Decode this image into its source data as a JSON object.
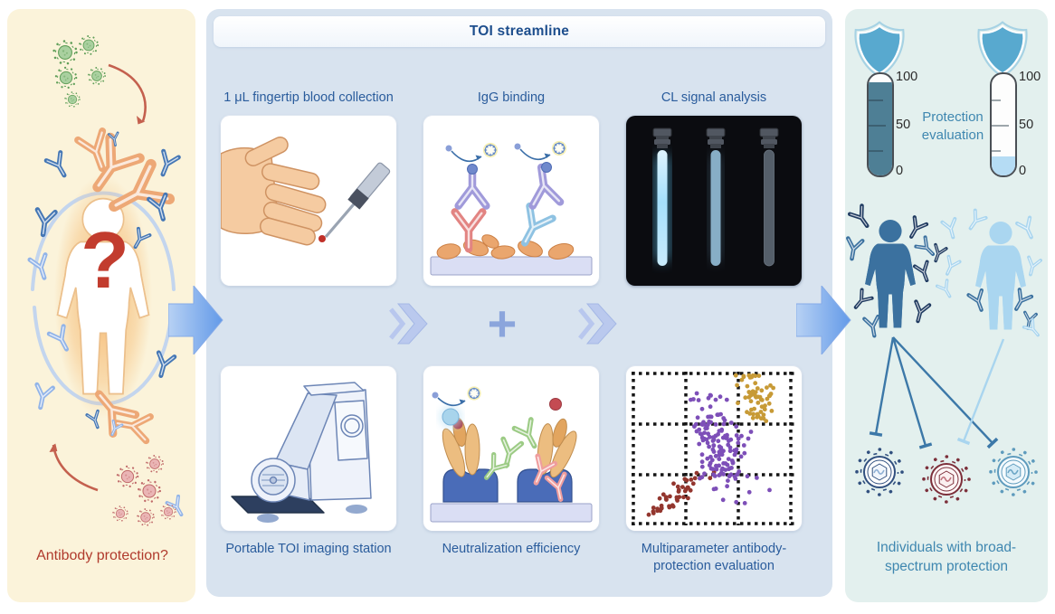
{
  "colors": {
    "left_panel_bg": "#fbf3da",
    "mid_panel_bg": "#d8e3ef",
    "right_panel_bg": "#e3f0ee",
    "label_blue": "#2a5c9c",
    "title_blue": "#1d4e8d",
    "caption_red": "#b03a2c",
    "caption_steel": "#3f87b0",
    "arrow_blue": "#639ae8",
    "chevron_blue": "#b8c7ee",
    "green_virus": "#5f9e58",
    "pink_virus": "#c06a6a",
    "dark_person": "#3b719f",
    "light_person": "#aad6f0",
    "navy_antibody": "#1f3a60",
    "orange_antibody": "#eda876",
    "shield": "#58a9cf"
  },
  "left_panel": {
    "question_mark": "?",
    "caption": "Antibody protection?"
  },
  "middle_panel": {
    "title": "TOI streamline",
    "plus": "+",
    "steps": [
      {
        "label": "1 μL fingertip blood collection"
      },
      {
        "label": "IgG binding"
      },
      {
        "label": "CL signal analysis"
      },
      {
        "label": "Portable TOI imaging station"
      },
      {
        "label": "Neutralization efficiency"
      },
      {
        "label": "Multiparameter antibody-protection evaluation"
      }
    ]
  },
  "chart_data": {
    "type": "scatter",
    "title": "Multiparameter antibody-protection evaluation",
    "grid": "dashed",
    "legend": "none",
    "series": [
      {
        "name": "low-protection cluster",
        "color": "#93362e",
        "n": 46,
        "center": [
          0.27,
          0.16
        ],
        "spread": [
          0.12,
          0.03
        ],
        "angle": 38
      },
      {
        "name": "mid-protection cluster",
        "color": "#7d4fb8",
        "n": 150,
        "center": [
          0.54,
          0.5
        ],
        "spread": [
          0.075,
          0.16
        ],
        "angle": 18
      },
      {
        "name": "high-protection cluster",
        "color": "#c79a36",
        "n": 62,
        "center": [
          0.77,
          0.8
        ],
        "spread": [
          0.055,
          0.085
        ],
        "angle": 15
      }
    ]
  },
  "right_panel": {
    "protection_label": "Protection evaluation",
    "caption": "Individuals with broad-spectrum protection",
    "gauges": [
      {
        "name": "high-protection-gauge",
        "fill_percent": 92,
        "color": "#4e7f95",
        "ticks": [
          "100",
          "50",
          "0"
        ]
      },
      {
        "name": "low-protection-gauge",
        "fill_percent": 19,
        "color": "#b5dcf4",
        "ticks": [
          "100",
          "50",
          "0"
        ]
      }
    ]
  }
}
